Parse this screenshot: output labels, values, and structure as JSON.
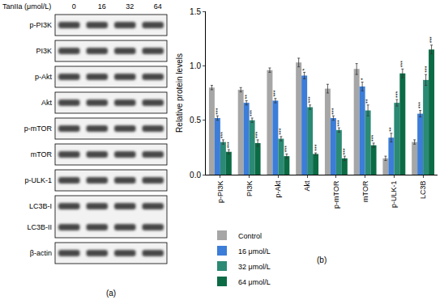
{
  "blot": {
    "header": "TanIIa (μmol/L)",
    "lanes": [
      "0",
      "16",
      "32",
      "64"
    ],
    "rows": [
      "p-PI3K",
      "PI3K",
      "p-Akt",
      "Akt",
      "p-mTOR",
      "mTOR",
      "p-ULK-1",
      [
        "LC3B-I",
        "LC3B-II"
      ],
      "β-actin"
    ],
    "panel_label": "(a)"
  },
  "chart_data": {
    "type": "bar",
    "panel_label": "(b)",
    "y_label": "Relative protein levels",
    "categories": [
      "p-PI3K",
      "PI3K",
      "p-Akt",
      "Akt",
      "p-mTOR",
      "mTOR",
      "p-ULK-1",
      "LC3B"
    ],
    "series": [
      {
        "name": "Control",
        "color": "#a6a6a6",
        "values": [
          0.8,
          0.78,
          0.96,
          1.03,
          0.79,
          0.97,
          0.15,
          0.3
        ],
        "errors": [
          0.02,
          0.02,
          0.02,
          0.04,
          0.04,
          0.05,
          0.02,
          0.02
        ],
        "annotations": [
          null,
          null,
          null,
          null,
          null,
          null,
          null,
          null
        ]
      },
      {
        "name": "16 μmol/L",
        "color": "#3b7dd8",
        "values": [
          0.52,
          0.66,
          0.68,
          0.91,
          0.52,
          0.81,
          0.34,
          0.56
        ],
        "errors": [
          0.02,
          0.02,
          0.02,
          0.03,
          0.02,
          0.04,
          0.04,
          0.03
        ],
        "annotations": [
          "***",
          "**",
          "***",
          "*",
          "***",
          "*",
          "**",
          "***"
        ]
      },
      {
        "name": "32 μmol/L",
        "color": "#2b8a74",
        "values": [
          0.3,
          0.5,
          0.33,
          0.62,
          0.41,
          0.59,
          0.66,
          0.87
        ],
        "errors": [
          0.02,
          0.02,
          0.02,
          0.02,
          0.02,
          0.05,
          0.03,
          0.05
        ],
        "annotations": [
          "***",
          "***",
          "***",
          "***",
          "***",
          "**",
          "***",
          "***"
        ]
      },
      {
        "name": "64 μmol/L",
        "color": "#0b6b45",
        "values": [
          0.21,
          0.29,
          0.17,
          0.19,
          0.15,
          0.27,
          0.93,
          1.15
        ],
        "errors": [
          0.02,
          0.03,
          0.02,
          0.01,
          0.02,
          0.02,
          0.04,
          0.04
        ],
        "annotations": [
          "***",
          "***",
          "***",
          "***",
          "***",
          "***",
          "***",
          "***"
        ]
      }
    ],
    "ylim": [
      0,
      1.5
    ],
    "yticks": [
      {
        "value": 0,
        "label": "0.0"
      },
      {
        "value": 0.5,
        "label": "0.5"
      },
      {
        "value": 1,
        "label": "1.0"
      },
      {
        "value": 1.5,
        "label": "1.5"
      }
    ],
    "grid": false,
    "legend": "bottom",
    "data_labels": false
  }
}
